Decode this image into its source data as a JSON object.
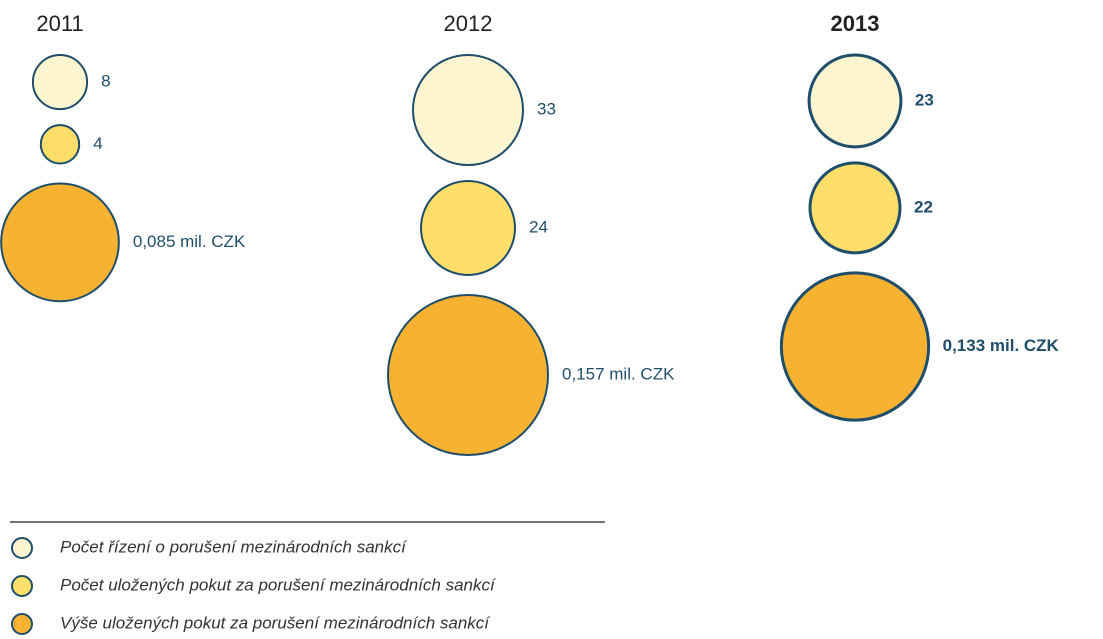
{
  "chart_data": {
    "type": "bubble",
    "categories": [
      "2011",
      "2012",
      "2013"
    ],
    "series": [
      {
        "name": "Počet řízení o porušení mezinárodních sankcí",
        "color": "#fdf5d0",
        "values": [
          8,
          33,
          23
        ]
      },
      {
        "name": "Počet uložených pokut za porušení mezinárodních sankcí",
        "color": "#fede6a",
        "values": [
          4,
          24,
          22
        ]
      },
      {
        "name": "Výše uložených pokut za porušení mezinárodních sankcí",
        "color": "#f8b232",
        "values": [
          0.085,
          0.157,
          0.133
        ],
        "value_labels": [
          "0,085 mil. CZK",
          "0,157 mil. CZK",
          "0,133 mil. CZK"
        ]
      }
    ]
  }
}
